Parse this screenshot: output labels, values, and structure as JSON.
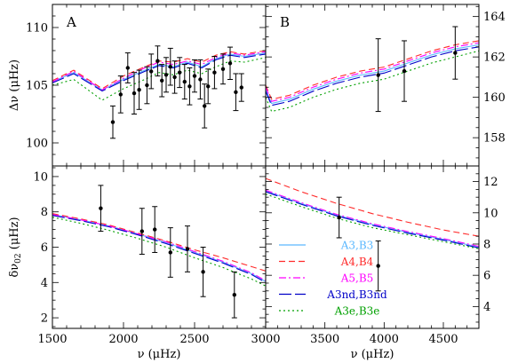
{
  "chart_data": {
    "type": "line",
    "x_axis": {
      "left": {
        "range": [
          1500,
          3000
        ],
        "ticks": [
          1500,
          2000,
          2500,
          3000
        ]
      },
      "right": {
        "range": [
          3000,
          4800
        ],
        "ticks": [
          3500,
          4000,
          4500
        ]
      },
      "label": "ν (μHz)"
    },
    "series_styles": [
      {
        "name": "A3,B3",
        "color": "#5bb8ff",
        "dash": ""
      },
      {
        "name": "A4,B4",
        "color": "#ff2a2a",
        "dash": "7,4"
      },
      {
        "name": "A5,B5",
        "color": "#ff00ff",
        "dash": "8,3,2,3"
      },
      {
        "name": "A3nd,B3nd",
        "color": "#0000c8",
        "dash": "14,4"
      },
      {
        "name": "A3e,B3e",
        "color": "#00a000",
        "dash": "2,3"
      }
    ],
    "legend": {
      "placement": "bottom-right panel",
      "entries": [
        "A3,B3",
        "A4,B4",
        "A5,B5",
        "A3nd,B3nd",
        "A3e,B3e"
      ]
    },
    "panels": [
      {
        "id": "top-left",
        "label": "A",
        "x_range": [
          1500,
          3000
        ],
        "y_range": [
          98,
          112
        ],
        "y_ticks": [
          100,
          105,
          110
        ],
        "y_label": "Δν (μHz)",
        "y_label_side": "left",
        "x_tick_labels": false,
        "series": [
          {
            "name": "A3,B3",
            "x": [
              1500,
              1650,
              1850,
              2000,
              2150,
              2250,
              2350,
              2450,
              2550,
              2650,
              2750,
              2850,
              3000
            ],
            "y": [
              105.3,
              106.1,
              104.6,
              105.5,
              106.3,
              106.8,
              106.6,
              107.0,
              106.6,
              107.3,
              107.7,
              107.5,
              107.8
            ]
          },
          {
            "name": "A4,B4",
            "x": [
              1500,
              1650,
              1850,
              2000,
              2150,
              2250,
              2350,
              2450,
              2550,
              2650,
              2750,
              2850,
              3000
            ],
            "y": [
              105.4,
              106.3,
              104.7,
              105.8,
              106.6,
              107.1,
              107.0,
              107.3,
              107.0,
              107.6,
              107.9,
              107.7,
              108.0
            ]
          },
          {
            "name": "A5,B5",
            "x": [
              1500,
              1650,
              1850,
              2000,
              2150,
              2250,
              2350,
              2450,
              2550,
              2650,
              2750,
              2850,
              3000
            ],
            "y": [
              105.3,
              106.2,
              104.6,
              105.6,
              106.5,
              107.0,
              106.8,
              107.1,
              106.8,
              107.4,
              107.8,
              107.6,
              107.9
            ]
          },
          {
            "name": "A3nd,B3nd",
            "x": [
              1500,
              1650,
              1850,
              2000,
              2150,
              2250,
              2350,
              2450,
              2550,
              2650,
              2750,
              2850,
              3000
            ],
            "y": [
              105.2,
              106.0,
              104.5,
              105.4,
              106.2,
              106.7,
              106.5,
              106.9,
              106.5,
              107.2,
              107.6,
              107.4,
              107.7
            ]
          },
          {
            "name": "A3e,B3e",
            "x": [
              1500,
              1650,
              1850,
              2000,
              2150,
              2250,
              2350,
              2450,
              2550,
              2650,
              2750,
              2850,
              3000
            ],
            "y": [
              105.0,
              105.5,
              103.7,
              104.7,
              105.5,
              106.1,
              105.9,
              106.3,
              106.0,
              106.6,
              107.1,
              107.0,
              107.4
            ]
          }
        ],
        "observations": {
          "x": [
            1925,
            1980,
            2030,
            2075,
            2110,
            2165,
            2195,
            2240,
            2270,
            2300,
            2330,
            2360,
            2395,
            2430,
            2465,
            2500,
            2540,
            2570,
            2595,
            2640,
            2700,
            2750,
            2790,
            2830
          ],
          "y": [
            101.8,
            104.2,
            106.5,
            104.3,
            104.6,
            105.0,
            106.2,
            107.1,
            105.4,
            105.9,
            106.6,
            105.7,
            106.1,
            105.3,
            104.9,
            105.8,
            105.5,
            103.2,
            104.9,
            106.1,
            106.4,
            106.9,
            104.4,
            104.8
          ],
          "err": [
            1.4,
            1.6,
            1.3,
            1.8,
            1.7,
            1.6,
            1.5,
            1.3,
            1.4,
            1.5,
            1.6,
            1.4,
            1.3,
            1.5,
            1.6,
            1.4,
            1.7,
            1.9,
            1.5,
            1.4,
            1.3,
            1.4,
            1.6,
            1.2
          ]
        }
      },
      {
        "id": "top-right",
        "label": "B",
        "x_range": [
          3000,
          4800
        ],
        "y_range": [
          156.6,
          164.6
        ],
        "y_ticks": [
          158,
          160,
          162,
          164
        ],
        "y_label": "",
        "y_label_side": "right",
        "x_tick_labels": false,
        "series": [
          {
            "name": "A3,B3",
            "x": [
              3000,
              3050,
              3200,
              3400,
              3600,
              3800,
              4000,
              4200,
              4400,
              4600,
              4800
            ],
            "y": [
              160.4,
              159.7,
              159.9,
              160.4,
              160.8,
              161.1,
              161.3,
              161.7,
              162.1,
              162.4,
              162.6
            ]
          },
          {
            "name": "A4,B4",
            "x": [
              3000,
              3050,
              3200,
              3400,
              3600,
              3800,
              4000,
              4200,
              4400,
              4600,
              4800
            ],
            "y": [
              160.6,
              159.9,
              160.1,
              160.6,
              161.0,
              161.3,
              161.5,
              161.9,
              162.3,
              162.6,
              162.8
            ]
          },
          {
            "name": "A5,B5",
            "x": [
              3000,
              3050,
              3200,
              3400,
              3600,
              3800,
              4000,
              4200,
              4400,
              4600,
              4800
            ],
            "y": [
              160.5,
              159.8,
              160.0,
              160.5,
              160.9,
              161.2,
              161.4,
              161.8,
              162.2,
              162.5,
              162.7
            ]
          },
          {
            "name": "A3nd,B3nd",
            "x": [
              3000,
              3050,
              3200,
              3400,
              3600,
              3800,
              4000,
              4200,
              4400,
              4600,
              4800
            ],
            "y": [
              160.3,
              159.6,
              159.8,
              160.3,
              160.7,
              161.0,
              161.2,
              161.6,
              162.0,
              162.3,
              162.5
            ]
          },
          {
            "name": "A3e,B3e",
            "x": [
              3000,
              3050,
              3200,
              3400,
              3600,
              3800,
              4000,
              4200,
              4400,
              4600,
              4800
            ],
            "y": [
              160.0,
              159.3,
              159.5,
              160.0,
              160.4,
              160.7,
              160.9,
              161.3,
              161.7,
              162.0,
              162.3
            ]
          }
        ],
        "observations": {
          "x": [
            3950,
            4170,
            4600
          ],
          "y": [
            161.1,
            161.3,
            162.2
          ],
          "err": [
            1.8,
            1.5,
            1.3
          ]
        }
      },
      {
        "id": "bottom-left",
        "label": "",
        "x_range": [
          1500,
          3000
        ],
        "y_range": [
          1.4,
          10.6
        ],
        "y_ticks": [
          2,
          4,
          6,
          8,
          10
        ],
        "y_label": "δν02 (μHz)",
        "y_label_side": "left",
        "x_tick_labels": true,
        "series": [
          {
            "name": "A3,B3",
            "x": [
              1500,
              1700,
              1900,
              2100,
              2300,
              2500,
              2700,
              2900,
              3000
            ],
            "y": [
              7.85,
              7.55,
              7.2,
              6.75,
              6.25,
              5.7,
              5.15,
              4.5,
              4.05
            ]
          },
          {
            "name": "A4,B4",
            "x": [
              1500,
              1700,
              1900,
              2100,
              2300,
              2500,
              2700,
              2900,
              3000
            ],
            "y": [
              7.9,
              7.6,
              7.25,
              6.8,
              6.35,
              5.85,
              5.4,
              4.9,
              4.65
            ]
          },
          {
            "name": "A5,B5",
            "x": [
              1500,
              1700,
              1900,
              2100,
              2300,
              2500,
              2700,
              2900,
              3000
            ],
            "y": [
              7.85,
              7.55,
              7.2,
              6.75,
              6.3,
              5.75,
              5.2,
              4.55,
              4.1
            ]
          },
          {
            "name": "A3nd,B3nd",
            "x": [
              1500,
              1700,
              1900,
              2100,
              2300,
              2500,
              2700,
              2900,
              3000
            ],
            "y": [
              7.8,
              7.5,
              7.15,
              6.7,
              6.2,
              5.65,
              5.1,
              4.45,
              4.0
            ]
          },
          {
            "name": "A3e,B3e",
            "x": [
              1500,
              1700,
              1900,
              2100,
              2300,
              2500,
              2700,
              2900,
              3000
            ],
            "y": [
              7.7,
              7.35,
              6.95,
              6.5,
              6.0,
              5.4,
              4.85,
              4.2,
              3.8
            ]
          }
        ],
        "observations": {
          "x": [
            1840,
            2130,
            2220,
            2330,
            2450,
            2560,
            2780
          ],
          "y": [
            8.2,
            6.9,
            7.0,
            5.7,
            5.9,
            4.6,
            3.3
          ],
          "err": [
            1.3,
            1.3,
            1.3,
            1.4,
            1.3,
            1.4,
            1.3
          ]
        }
      },
      {
        "id": "bottom-right",
        "label": "",
        "x_range": [
          3000,
          4800
        ],
        "y_range": [
          2.6,
          13.0
        ],
        "y_ticks": [
          4,
          6,
          8,
          10,
          12
        ],
        "y_label": "",
        "y_label_side": "right",
        "x_tick_labels": true,
        "series": [
          {
            "name": "A3,B3",
            "x": [
              3000,
              3300,
              3600,
              3900,
              4200,
              4500,
              4800
            ],
            "y": [
              11.4,
              10.6,
              9.85,
              9.25,
              8.75,
              8.3,
              7.8
            ]
          },
          {
            "name": "A4,B4",
            "x": [
              3000,
              3300,
              3600,
              3900,
              4200,
              4500,
              4800
            ],
            "y": [
              12.2,
              11.35,
              10.6,
              9.95,
              9.4,
              8.9,
              8.5
            ]
          },
          {
            "name": "A5,B5",
            "x": [
              3000,
              3300,
              3600,
              3900,
              4200,
              4500,
              4800
            ],
            "y": [
              11.45,
              10.65,
              9.9,
              9.3,
              8.8,
              8.35,
              7.85
            ]
          },
          {
            "name": "A3nd,B3nd",
            "x": [
              3000,
              3300,
              3600,
              3900,
              4200,
              4500,
              4800
            ],
            "y": [
              11.35,
              10.55,
              9.8,
              9.2,
              8.7,
              8.25,
              7.75
            ]
          },
          {
            "name": "A3e,B3e",
            "x": [
              3000,
              3300,
              3600,
              3900,
              4200,
              4500,
              4800
            ],
            "y": [
              11.2,
              10.4,
              9.65,
              9.05,
              8.6,
              8.15,
              7.7
            ]
          }
        ],
        "observations": {
          "x": [
            3620,
            3950
          ],
          "y": [
            9.7,
            6.6
          ],
          "err": [
            1.3,
            1.6
          ]
        }
      }
    ]
  }
}
